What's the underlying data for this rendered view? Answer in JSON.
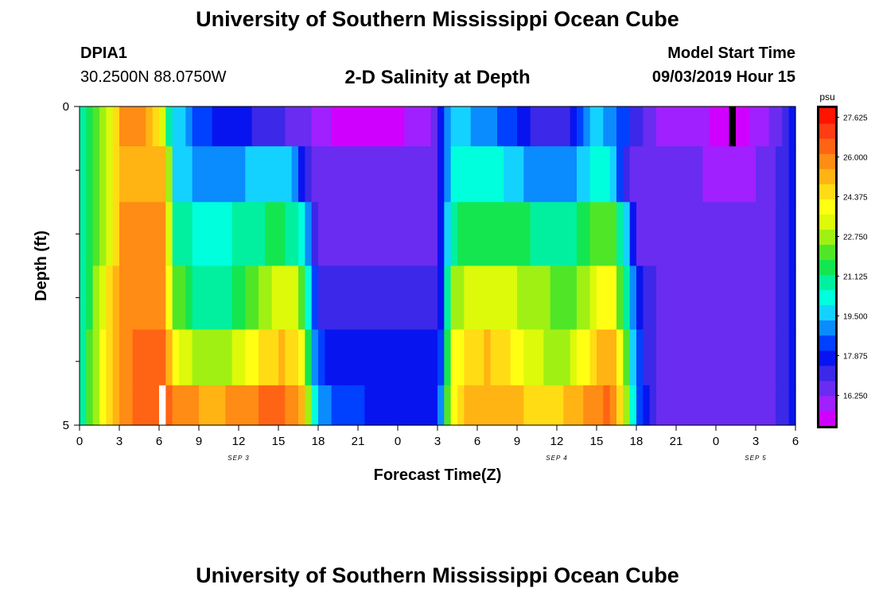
{
  "page": {
    "title_top": "University of Southern Mississippi Ocean Cube",
    "title_bottom": "University of Southern Mississippi Ocean Cube",
    "station_id": "DPIA1",
    "station_coords": "30.2500N 88.0750W",
    "model_start_label": "Model Start Time",
    "model_start_value": "09/03/2019 Hour 15"
  },
  "colors": {
    "palette": [
      "#d000ff",
      "#a020ff",
      "#6a2cf0",
      "#3c28e8",
      "#0814f0",
      "#0040ff",
      "#0a8cff",
      "#14d2ff",
      "#00ffdc",
      "#00f0a0",
      "#14e650",
      "#50e628",
      "#a0f014",
      "#dcfa0a",
      "#ffff14",
      "#ffdc14",
      "#ffb414",
      "#ff8c14",
      "#ff6414",
      "#ff3c14",
      "#ff1400"
    ],
    "missing": "#000000",
    "highlight": "#ffffff"
  },
  "chart_data": {
    "type": "heatmap",
    "title": "2-D Salinity at Depth",
    "xlabel": "Forecast Time(Z)",
    "ylabel": "Depth (ft)",
    "x_tick_labels": [
      "0",
      "3",
      "6",
      "9",
      "12",
      "15",
      "18",
      "21",
      "0",
      "3",
      "6",
      "9",
      "12",
      "15",
      "18",
      "21",
      "0",
      "3",
      "6"
    ],
    "x_hours_from_start": [
      0,
      3,
      6,
      9,
      12,
      15,
      18,
      21,
      24,
      27,
      30,
      33,
      36,
      39,
      42,
      45,
      48,
      51,
      54
    ],
    "x_range_hours": [
      0,
      54
    ],
    "date_labels": [
      {
        "text": "SEP 3",
        "hour": 12
      },
      {
        "text": "SEP 4",
        "hour": 36
      },
      {
        "text": "SEP 5",
        "hour": 51
      }
    ],
    "y_tick_labels": [
      "0",
      "5"
    ],
    "y_range": [
      0,
      5
    ],
    "y_minor_ticks": [
      1,
      2,
      3,
      4
    ],
    "colorbar": {
      "unit": "psu",
      "tick_labels": [
        "27.625",
        "26.000",
        "24.375",
        "22.750",
        "21.125",
        "19.500",
        "17.875",
        "16.250"
      ],
      "tick_values": [
        27.625,
        26.0,
        24.375,
        22.75,
        21.125,
        19.5,
        17.875,
        16.25
      ],
      "vmin": 15.0,
      "vmax": 28.0
    },
    "layers_depth": [
      0.25,
      1.0,
      2.0,
      3.0,
      4.0,
      4.75
    ],
    "keyframes_hours": [
      0,
      1,
      2,
      3,
      4.5,
      6,
      6.5,
      7,
      9,
      11,
      13,
      15,
      16,
      17,
      17.5,
      18,
      19.5,
      22,
      24,
      26,
      27,
      27.5,
      28,
      29,
      31,
      33,
      35,
      37,
      39,
      40,
      41,
      42,
      43,
      44,
      46,
      48,
      50,
      52,
      53.5,
      54
    ],
    "keyframes_values": [
      [
        20.5,
        21.5,
        23.0,
        25.5,
        25.8,
        24.5,
        22.0,
        20.0,
        18.5,
        17.5,
        17.5,
        17.0,
        16.5,
        16.5,
        16.0,
        16.0,
        15.5,
        15.5,
        15.5,
        16.0,
        16.5,
        18.5,
        19.5,
        19.5,
        19.0,
        18.0,
        17.0,
        17.5,
        20.0,
        19.0,
        18.5,
        17.0,
        16.5,
        16.0,
        16.0,
        15.5,
        15.5,
        16.0,
        17.5,
        18.0
      ],
      [
        20.5,
        21.5,
        23.0,
        25.5,
        25.5,
        25.0,
        25.0,
        20.0,
        19.0,
        19.0,
        19.5,
        20.0,
        19.5,
        17.5,
        16.5,
        16.5,
        16.5,
        16.5,
        16.5,
        16.5,
        16.5,
        18.5,
        20.0,
        20.5,
        20.5,
        19.5,
        19.0,
        19.0,
        20.5,
        20.0,
        17.5,
        16.5,
        16.5,
        16.5,
        16.5,
        16.0,
        16.0,
        16.5,
        17.5,
        18.0
      ],
      [
        20.5,
        21.5,
        23.0,
        25.5,
        25.8,
        25.8,
        25.5,
        21.0,
        20.5,
        20.5,
        21.0,
        21.5,
        21.0,
        20.0,
        18.0,
        16.5,
        16.5,
        16.5,
        16.5,
        16.5,
        16.5,
        18.5,
        21.0,
        21.5,
        21.5,
        21.5,
        21.0,
        21.0,
        22.0,
        22.5,
        20.5,
        16.8,
        16.5,
        16.5,
        16.5,
        16.5,
        16.5,
        16.5,
        17.5,
        18.0
      ],
      [
        20.5,
        22.0,
        24.0,
        25.5,
        26.0,
        26.0,
        25.5,
        22.5,
        21.0,
        21.0,
        22.0,
        23.5,
        23.5,
        22.0,
        19.0,
        17.5,
        17.0,
        17.0,
        17.0,
        17.0,
        17.0,
        19.0,
        22.5,
        23.0,
        23.5,
        23.0,
        22.5,
        22.0,
        23.5,
        24.5,
        21.5,
        18.0,
        17.0,
        16.5,
        16.5,
        16.5,
        16.5,
        16.5,
        17.5,
        18.5
      ],
      [
        20.5,
        22.5,
        24.5,
        25.5,
        26.5,
        26.5,
        26.0,
        24.0,
        22.5,
        22.5,
        24.0,
        25.0,
        24.8,
        23.5,
        20.0,
        18.5,
        17.5,
        17.5,
        17.5,
        17.5,
        17.5,
        19.5,
        23.5,
        24.5,
        25.0,
        24.0,
        23.0,
        23.0,
        25.0,
        25.5,
        23.5,
        18.5,
        17.0,
        16.5,
        16.5,
        16.5,
        16.5,
        16.5,
        17.5,
        18.5
      ],
      [
        20.5,
        22.5,
        24.5,
        25.5,
        26.5,
        26.5,
        26.5,
        26.0,
        25.5,
        25.5,
        26.0,
        26.5,
        26.0,
        25.0,
        21.0,
        19.0,
        18.5,
        18.0,
        17.5,
        17.5,
        18.0,
        20.0,
        24.0,
        25.0,
        25.5,
        25.0,
        24.5,
        25.0,
        26.0,
        26.5,
        24.0,
        19.0,
        17.5,
        16.5,
        16.5,
        16.5,
        16.5,
        16.5,
        17.5,
        18.5
      ]
    ],
    "missing_cell": {
      "hour": 49,
      "depth_index": 0
    },
    "highlight_cell": {
      "hour": 6,
      "depth_index": 5
    }
  }
}
